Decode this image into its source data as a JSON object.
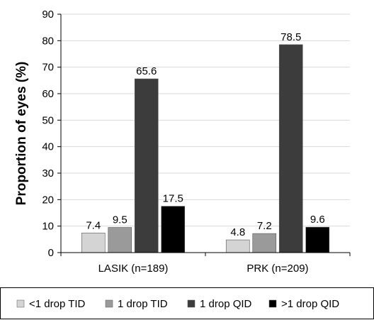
{
  "chart_data": {
    "type": "bar",
    "ylabel": "Proportion of eyes (%)",
    "xlabel": "",
    "ylim": [
      0,
      90
    ],
    "yticks": [
      0,
      10,
      20,
      30,
      40,
      50,
      60,
      70,
      80,
      90
    ],
    "grid": true,
    "legend_position": "bottom",
    "categories": [
      "LASIK (n=189)",
      "PRK (n=209)"
    ],
    "series": [
      {
        "name": "<1 drop TID",
        "color": "#d4d4d4",
        "values": [
          7.4,
          4.8
        ]
      },
      {
        "name": "1 drop TID",
        "color": "#9a9a9a",
        "values": [
          9.5,
          7.2
        ]
      },
      {
        "name": "1 drop QID",
        "color": "#3c3c3c",
        "values": [
          65.6,
          78.5
        ]
      },
      {
        "name": ">1 drop QID",
        "color": "#000000",
        "values": [
          17.5,
          9.6
        ]
      }
    ]
  }
}
